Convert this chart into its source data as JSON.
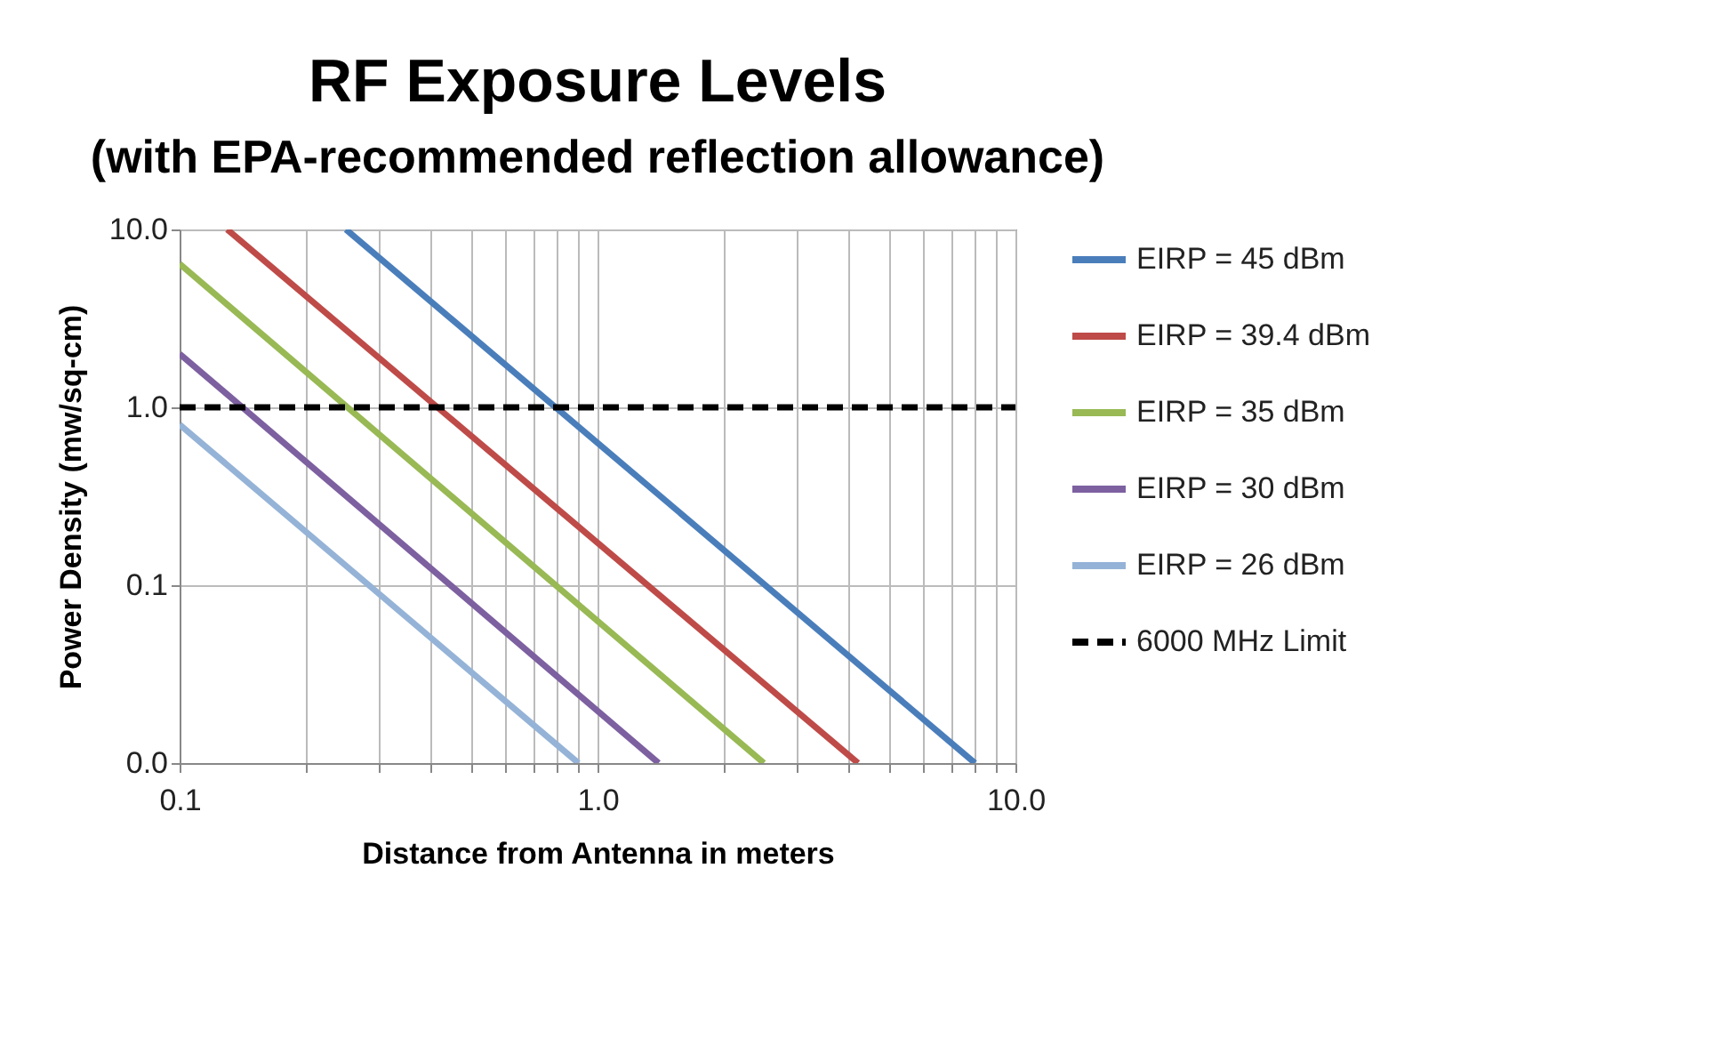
{
  "chart_data": {
    "type": "line",
    "title": "RF Exposure Levels",
    "subtitle": "(with EPA-recommended reflection allowance)",
    "xlabel": "Distance from Antenna in meters",
    "ylabel": "Power Density (mw/sq-cm)",
    "log": "xy",
    "grid": true,
    "legend": "right",
    "xlim": [
      0.1,
      10
    ],
    "ylim": [
      0.01,
      10
    ],
    "xticks": [
      {
        "value": 0.1,
        "label": "0.1"
      },
      {
        "value": 0.2,
        "label": null
      },
      {
        "value": 0.3,
        "label": null
      },
      {
        "value": 0.4,
        "label": null
      },
      {
        "value": 0.5,
        "label": null
      },
      {
        "value": 0.6,
        "label": null
      },
      {
        "value": 0.7,
        "label": null
      },
      {
        "value": 0.8,
        "label": null
      },
      {
        "value": 0.9,
        "label": null
      },
      {
        "value": 1,
        "label": "1.0"
      },
      {
        "value": 2,
        "label": null
      },
      {
        "value": 3,
        "label": null
      },
      {
        "value": 4,
        "label": null
      },
      {
        "value": 5,
        "label": null
      },
      {
        "value": 6,
        "label": null
      },
      {
        "value": 7,
        "label": null
      },
      {
        "value": 8,
        "label": null
      },
      {
        "value": 9,
        "label": null
      },
      {
        "value": 10,
        "label": "10.0"
      }
    ],
    "yticks": [
      {
        "value": 0.01,
        "label": "0.0"
      },
      {
        "value": 0.1,
        "label": "0.1"
      },
      {
        "value": 1,
        "label": "1.0"
      },
      {
        "value": 10,
        "label": "10.0"
      }
    ],
    "series": [
      {
        "name": "EIRP = 45 dBm",
        "color": "#4a7ebb",
        "x": [
          0.25,
          8.0
        ],
        "values": [
          10,
          0.01
        ]
      },
      {
        "name": "EIRP = 39.4 dBm",
        "color": "#be4b48",
        "x": [
          0.13,
          4.2
        ],
        "values": [
          10,
          0.01
        ]
      },
      {
        "name": "EIRP = 35 dBm",
        "color": "#98b954",
        "x": [
          0.1,
          2.5
        ],
        "values": [
          6.4,
          0.01
        ]
      },
      {
        "name": "EIRP = 30 dBm",
        "color": "#7d60a0",
        "x": [
          0.1,
          1.4
        ],
        "values": [
          2.0,
          0.01
        ]
      },
      {
        "name": "EIRP = 26 dBm",
        "color": "#95b3d7",
        "x": [
          0.1,
          0.9
        ],
        "values": [
          0.8,
          0.01
        ]
      },
      {
        "name": "6000 MHz Limit",
        "color": "#000000",
        "x": [
          0.1,
          10
        ],
        "values": [
          1,
          1
        ],
        "line_style": "dashed"
      }
    ]
  }
}
